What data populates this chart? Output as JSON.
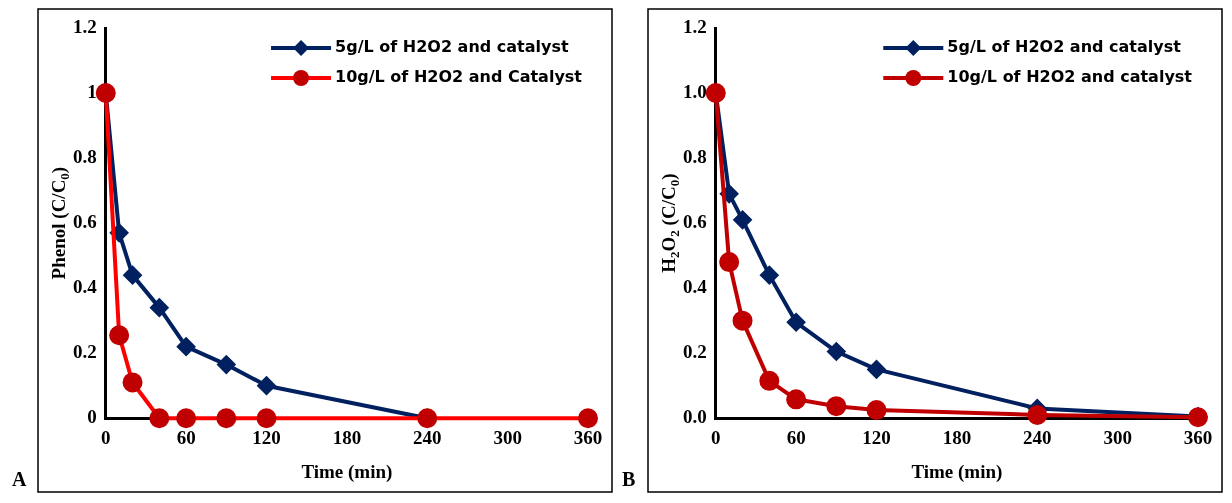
{
  "chart_data": [
    {
      "type": "line",
      "ylabel": "Phenol (C/C$_{0}$)",
      "xlabel": "Time (min)",
      "annotations": [
        "A"
      ],
      "x": [
        0,
        10,
        20,
        40,
        60,
        90,
        120,
        240,
        360
      ],
      "xlim": [
        0,
        360
      ],
      "xticks": [
        0,
        60,
        120,
        180,
        240,
        300,
        360
      ],
      "ylim": [
        0,
        1.2
      ],
      "yticks": [
        0,
        0.2,
        0.4,
        0.6,
        0.8,
        1,
        1.2
      ],
      "legend": "top right",
      "grid": false,
      "series": [
        {
          "name": "5g/L of H2O2 and catalyst",
          "color": "#002060",
          "marker": "diamond",
          "values": [
            1,
            0.57,
            0.44,
            0.34,
            0.22,
            0.165,
            0.1,
            0,
            null
          ]
        },
        {
          "name": "10g/L of H2O2 and Catalyst",
          "color": "#ff0000",
          "marker": "circle",
          "values": [
            1,
            0.255,
            0.11,
            0,
            0,
            0,
            0,
            0,
            0
          ]
        }
      ]
    },
    {
      "type": "line",
      "ylabel": "H$_{2}$O$_{2}$ (C/C$_{0}$)",
      "xlabel": "Time (min)",
      "annotations": [
        "B"
      ],
      "x": [
        0,
        10,
        20,
        40,
        60,
        90,
        120,
        240,
        360
      ],
      "xlim": [
        0,
        360
      ],
      "xticks": [
        0,
        60,
        120,
        180,
        240,
        300,
        360
      ],
      "ylim": [
        0,
        1.2
      ],
      "yticks": [
        {
          "value": 0,
          "label": "0.0"
        },
        0.2,
        0.4,
        0.6,
        0.8,
        {
          "value": 1,
          "label": "1.0"
        },
        1.2
      ],
      "legend": "top right",
      "grid": false,
      "series": [
        {
          "name": "5g/L of H2O2 and catalyst",
          "color": "#002060",
          "marker": "diamond",
          "values": [
            1,
            0.69,
            0.61,
            0.44,
            0.295,
            0.205,
            0.15,
            0.03,
            0.005
          ]
        },
        {
          "name": "10g/L of H2O2 and catalyst",
          "color": "#c00000",
          "marker": "circle",
          "values": [
            1,
            0.48,
            0.3,
            0.115,
            0.058,
            0.037,
            0.025,
            0.01,
            0.003
          ]
        }
      ]
    }
  ]
}
